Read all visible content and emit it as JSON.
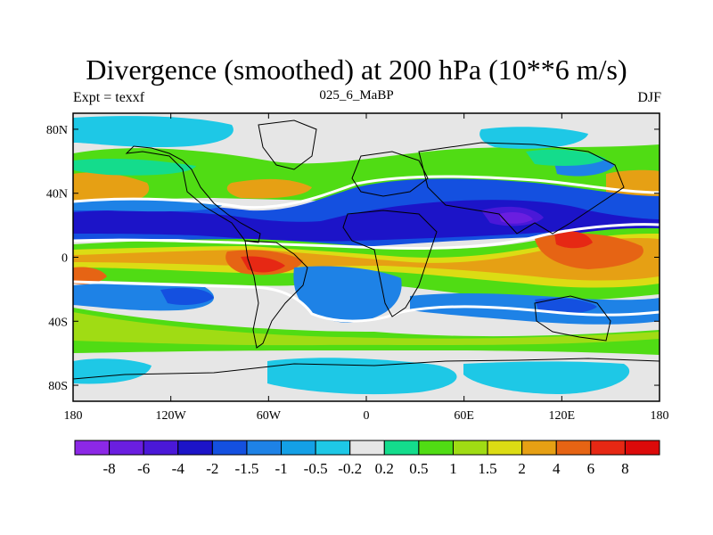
{
  "chart_data": {
    "type": "heatmap",
    "title": "Divergence (smoothed) at 200 hPa (10**6 m/s)",
    "subtitle": "025_6_MaBP",
    "left_label": "Expt = texxf",
    "right_label": "DJF",
    "x_ticks": [
      "180",
      "120W",
      "60W",
      "0",
      "60E",
      "120E",
      "180"
    ],
    "x_tick_values": [
      -180,
      -120,
      -60,
      0,
      60,
      120,
      180
    ],
    "y_ticks": [
      "80N",
      "40N",
      "0",
      "40S",
      "80S"
    ],
    "y_tick_values": [
      80,
      40,
      0,
      -40,
      -80
    ],
    "xlim": [
      -180,
      180
    ],
    "ylim": [
      -90,
      90
    ],
    "colorbar": {
      "labels": [
        "-8",
        "-6",
        "-4",
        "-2",
        "-1.5",
        "-1",
        "-0.5",
        "-0.2",
        "0.2",
        "0.5",
        "1",
        "1.5",
        "2",
        "4",
        "6",
        "8"
      ],
      "levels": [
        -8,
        -6,
        -4,
        -2,
        -1.5,
        -1,
        -0.5,
        -0.2,
        0.2,
        0.5,
        1,
        1.5,
        2,
        4,
        6,
        8
      ],
      "colors": [
        "#8c28e6",
        "#6a1ee0",
        "#4a18d8",
        "#1c14c8",
        "#1450e0",
        "#1e82e6",
        "#14a0e6",
        "#1ec8e6",
        "#e6e6e6",
        "#14dc8c",
        "#50dc14",
        "#a0dc14",
        "#dcdc14",
        "#e6a014",
        "#e66414",
        "#e62814",
        "#dc0a0a"
      ]
    },
    "fields": {
      "background": "#e6e6e6",
      "contour_line": "#ffffff",
      "coastline": "#000000"
    }
  }
}
